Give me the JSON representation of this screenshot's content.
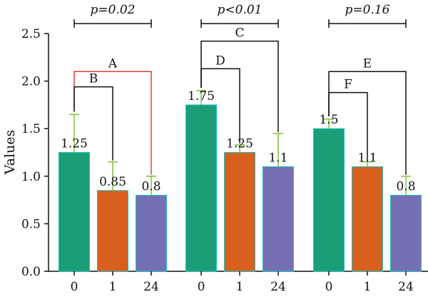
{
  "chart_data": {
    "type": "bar",
    "ylabel": "Values",
    "ylim": [
      0,
      2.5
    ],
    "yticks": [
      "0.0",
      "0.5",
      "1.0",
      "1.5",
      "2.0",
      "2.5"
    ],
    "colors": {
      "0": "#1b9e77",
      "1": "#d95f1e",
      "24": "#7570b3",
      "error": "#7cc33a",
      "bracket": "#111111",
      "bracket_highlight": "#e53b3b",
      "bar_outline": "#19c3c3"
    },
    "groups": [
      {
        "p_text": "p=0.02",
        "bars": [
          {
            "category": "0",
            "value": 1.25,
            "err": 0.4,
            "label": "1.25"
          },
          {
            "category": "1",
            "value": 0.85,
            "err": 0.3,
            "label": "0.85"
          },
          {
            "category": "24",
            "value": 0.8,
            "err": 0.2,
            "label": "0.8"
          }
        ],
        "brackets": [
          {
            "letter": "A",
            "from": 0,
            "to": 2,
            "level": 2.1,
            "highlight": true
          },
          {
            "letter": "B",
            "from": 0,
            "to": 1,
            "level": 1.94,
            "highlight": false
          }
        ]
      },
      {
        "p_text": "p<0.01",
        "bars": [
          {
            "category": "0",
            "value": 1.75,
            "err": 0.15,
            "label": "1.75"
          },
          {
            "category": "1",
            "value": 1.25,
            "err": 0.08,
            "label": "1.25"
          },
          {
            "category": "24",
            "value": 1.1,
            "err": 0.35,
            "label": "1.1"
          }
        ],
        "brackets": [
          {
            "letter": "C",
            "from": 0,
            "to": 2,
            "level": 2.42,
            "highlight": false
          },
          {
            "letter": "D",
            "from": 0,
            "to": 1,
            "level": 2.13,
            "highlight": false
          }
        ]
      },
      {
        "p_text": "p=0.16",
        "bars": [
          {
            "category": "0",
            "value": 1.5,
            "err": 0.1,
            "label": "1.5"
          },
          {
            "category": "1",
            "value": 1.1,
            "err": 0.05,
            "label": "1.1"
          },
          {
            "category": "24",
            "value": 0.8,
            "err": 0.2,
            "label": "0.8"
          }
        ],
        "brackets": [
          {
            "letter": "E",
            "from": 0,
            "to": 2,
            "level": 2.1,
            "highlight": false
          },
          {
            "letter": "F",
            "from": 0,
            "to": 1,
            "level": 1.88,
            "highlight": false
          }
        ]
      }
    ]
  }
}
